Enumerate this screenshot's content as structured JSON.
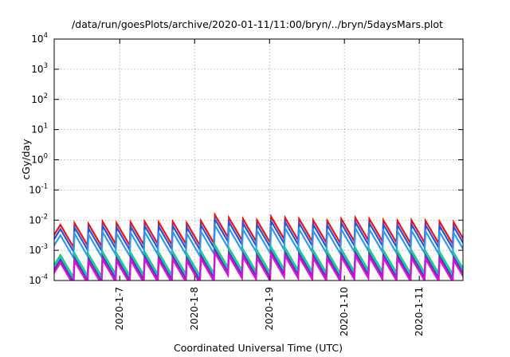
{
  "chart_data": {
    "type": "line",
    "title": "/data/run/goesPlots/archive/2020-01-11/11:00/bryn/../bryn/5daysMars.plot",
    "xlabel": "Coordinated Universal Time (UTC)",
    "ylabel": "cGy/day",
    "yscale": "log",
    "ylim": [
      0.0001,
      10000
    ],
    "y_ticks": [
      {
        "base": "10",
        "exp": "4",
        "value": 10000
      },
      {
        "base": "10",
        "exp": "3",
        "value": 1000
      },
      {
        "base": "10",
        "exp": "2",
        "value": 100
      },
      {
        "base": "10",
        "exp": "1",
        "value": 10
      },
      {
        "base": "10",
        "exp": "0",
        "value": 1
      },
      {
        "base": "10",
        "exp": "-1",
        "value": 0.1
      },
      {
        "base": "10",
        "exp": "-2",
        "value": 0.01
      },
      {
        "base": "10",
        "exp": "-3",
        "value": 0.001
      },
      {
        "base": "10",
        "exp": "-4",
        "value": 0.0001
      }
    ],
    "xlim": [
      "2020-01-06 03:00",
      "2020-01-11 14:00"
    ],
    "x_ticks": [
      {
        "label": "2020-1-7",
        "value": "2020-01-07 00:00"
      },
      {
        "label": "2020-1-8",
        "value": "2020-01-08 00:00"
      },
      {
        "label": "2020-1-9",
        "value": "2020-01-09 00:00"
      },
      {
        "label": "2020-1-10",
        "value": "2020-01-10 00:00"
      },
      {
        "label": "2020-1-11",
        "value": "2020-01-11 00:00"
      }
    ],
    "grid": true,
    "legend": "none",
    "sawtooth": {
      "peaks": [
        {
          "t": "2020-01-06 05:00",
          "v": 0.007
        },
        {
          "t": "2020-01-06 09:30",
          "v": 0.008
        },
        {
          "t": "2020-01-06 14:00",
          "v": 0.0075
        },
        {
          "t": "2020-01-06 18:30",
          "v": 0.009
        },
        {
          "t": "2020-01-06 23:00",
          "v": 0.008
        },
        {
          "t": "2020-01-07 03:30",
          "v": 0.0085
        },
        {
          "t": "2020-01-07 08:00",
          "v": 0.009
        },
        {
          "t": "2020-01-07 12:30",
          "v": 0.0085
        },
        {
          "t": "2020-01-07 17:00",
          "v": 0.009
        },
        {
          "t": "2020-01-07 21:30",
          "v": 0.008
        },
        {
          "t": "2020-01-08 02:00",
          "v": 0.0095
        },
        {
          "t": "2020-01-08 06:30",
          "v": 0.015
        },
        {
          "t": "2020-01-08 11:00",
          "v": 0.012
        },
        {
          "t": "2020-01-08 15:30",
          "v": 0.011
        },
        {
          "t": "2020-01-08 20:00",
          "v": 0.01
        },
        {
          "t": "2020-01-09 00:30",
          "v": 0.013
        },
        {
          "t": "2020-01-09 05:00",
          "v": 0.012
        },
        {
          "t": "2020-01-09 09:30",
          "v": 0.011
        },
        {
          "t": "2020-01-09 14:00",
          "v": 0.01
        },
        {
          "t": "2020-01-09 18:30",
          "v": 0.0095
        },
        {
          "t": "2020-01-09 23:00",
          "v": 0.011
        },
        {
          "t": "2020-01-10 03:30",
          "v": 0.012
        },
        {
          "t": "2020-01-10 08:00",
          "v": 0.011
        },
        {
          "t": "2020-01-10 12:30",
          "v": 0.01
        },
        {
          "t": "2020-01-10 17:00",
          "v": 0.0095
        },
        {
          "t": "2020-01-10 21:30",
          "v": 0.01
        },
        {
          "t": "2020-01-11 02:00",
          "v": 0.0095
        },
        {
          "t": "2020-01-11 06:30",
          "v": 0.009
        },
        {
          "t": "2020-01-11 11:00",
          "v": 0.0085
        }
      ],
      "decay_factor": 0.18
    },
    "series": [
      {
        "color": "#ee1111",
        "scale": 1.0
      },
      {
        "color": "#2255dd",
        "scale": 0.72
      },
      {
        "color": "#3399ee",
        "scale": 0.45
      },
      {
        "color": "#22cc66",
        "scale": 0.1
      },
      {
        "color": "#11cccc",
        "scale": 0.085
      },
      {
        "color": "#6633aa",
        "scale": 0.07
      },
      {
        "color": "#dd11dd",
        "scale": 0.055
      }
    ]
  }
}
